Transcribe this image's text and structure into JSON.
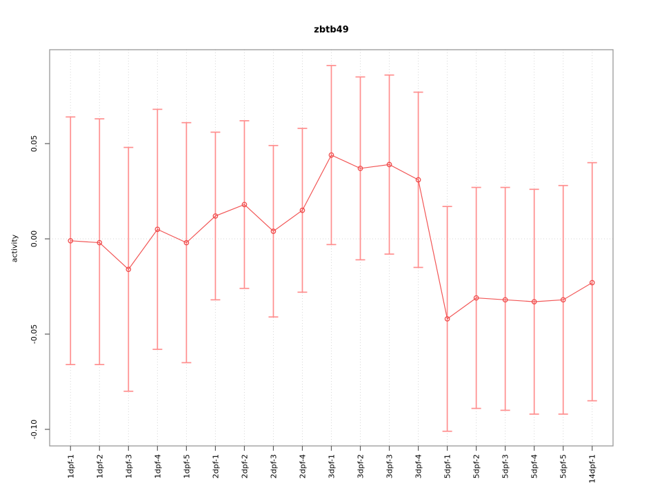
{
  "chart_data": {
    "type": "line",
    "subtype": "points-with-error-bars",
    "title": "zbtb49",
    "xlabel": "",
    "ylabel": "activity",
    "categories": [
      "1dpf-1",
      "1dpf-2",
      "1dpf-3",
      "1dpf-4",
      "1dpf-5",
      "2dpf-1",
      "2dpf-2",
      "2dpf-3",
      "2dpf-4",
      "3dpf-1",
      "3dpf-2",
      "3dpf-3",
      "3dpf-4",
      "5dpf-1",
      "5dpf-2",
      "5dpf-3",
      "5dpf-4",
      "5dpf-5",
      "14dpf-1"
    ],
    "series": [
      {
        "name": "zbtb49 activity",
        "values": [
          -0.001,
          -0.002,
          -0.016,
          0.005,
          -0.002,
          0.012,
          0.018,
          0.004,
          0.015,
          0.044,
          0.037,
          0.039,
          0.031,
          -0.042,
          -0.031,
          -0.032,
          -0.033,
          -0.032,
          -0.023
        ],
        "upper": [
          0.064,
          0.063,
          0.048,
          0.068,
          0.061,
          0.056,
          0.062,
          0.049,
          0.058,
          0.091,
          0.085,
          0.086,
          0.077,
          0.017,
          0.027,
          0.027,
          0.026,
          0.028,
          0.04
        ],
        "lower": [
          -0.066,
          -0.066,
          -0.08,
          -0.058,
          -0.065,
          -0.032,
          -0.026,
          -0.041,
          -0.028,
          -0.003,
          -0.011,
          -0.008,
          -0.015,
          -0.101,
          -0.089,
          -0.09,
          -0.092,
          -0.092,
          -0.085
        ]
      }
    ],
    "ylim": [
      -0.1087,
      0.0993
    ],
    "yticks": {
      "values": [
        0.05,
        0.0,
        -0.05,
        -0.1
      ],
      "labels": [
        "0.05",
        "0.00",
        "-0.05",
        "-0.10"
      ]
    },
    "grid": {
      "vertical_dotted_per_category": true,
      "horizontal_dotted_at_zero": true
    },
    "legend": "none",
    "marker": "open-circle",
    "colors": {
      "point": "#ef4b4b",
      "line": "#f25555",
      "error_bar": "#ff8e8e",
      "grid": "#d6d6d6",
      "frame": "#979797",
      "tick": "#5a5a5a",
      "text": "#000000",
      "background": "#ffffff"
    }
  }
}
